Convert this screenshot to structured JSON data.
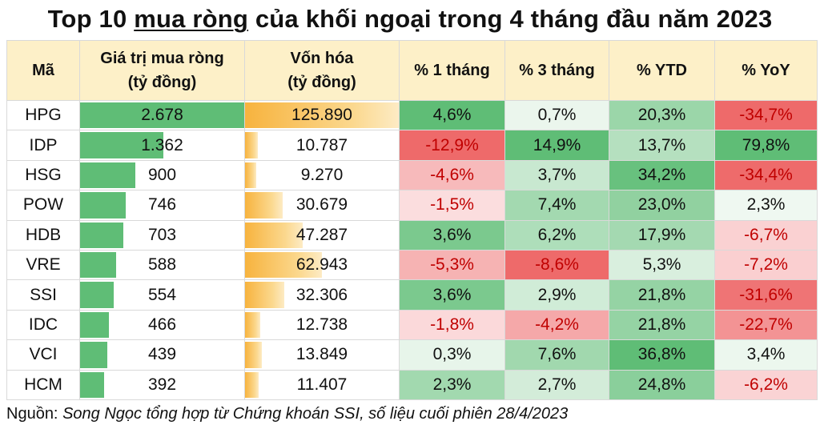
{
  "title": {
    "prefix": "Top 10 ",
    "underlined": "mua ròng",
    "suffix": " của khối ngoại trong 4 tháng đầu năm 2023"
  },
  "headers": {
    "code": "Mã",
    "net_buy_1": "Giá trị mua ròng",
    "net_buy_2": "(tỷ đồng)",
    "cap_1": "Vốn hóa",
    "cap_2": "(tỷ đồng)",
    "m1": "% 1 tháng",
    "m3": "% 3 tháng",
    "ytd": "% YTD",
    "yoy": "% YoY"
  },
  "source": {
    "label": "Nguồn: ",
    "text": "Song Ngọc tổng hợp từ Chứng khoán SSI, số liệu cuối phiên 28/4/2023"
  },
  "colors": {
    "positive_strong": "#5fbd76",
    "positive_light": "#e4f3e7",
    "negative_strong": "#ee6a6a",
    "negative_light": "#fde6e8",
    "bar_green": "#5fbd76",
    "bar_orange": "#f7b33e",
    "header_bg": "#fdf0c8"
  },
  "chart_data": {
    "type": "table",
    "columns": [
      "Mã",
      "Giá trị mua ròng (tỷ đồng)",
      "Vốn hóa (tỷ đồng)",
      "% 1 tháng",
      "% 3 tháng",
      "% YTD",
      "% YoY"
    ],
    "rows": [
      {
        "code": "HPG",
        "net_buy": 2678,
        "net_buy_label": "2.678",
        "market_cap": 125890,
        "market_cap_label": "125.890",
        "m1": 4.6,
        "m1_label": "4,6%",
        "m3": 0.7,
        "m3_label": "0,7%",
        "ytd": 20.3,
        "ytd_label": "20,3%",
        "yoy": -34.7,
        "yoy_label": "-34,7%"
      },
      {
        "code": "IDP",
        "net_buy": 1362,
        "net_buy_label": "1.362",
        "market_cap": 10787,
        "market_cap_label": "10.787",
        "m1": -12.9,
        "m1_label": "-12,9%",
        "m3": 14.9,
        "m3_label": "14,9%",
        "ytd": 13.7,
        "ytd_label": "13,7%",
        "yoy": 79.8,
        "yoy_label": "79,8%"
      },
      {
        "code": "HSG",
        "net_buy": 900,
        "net_buy_label": "900",
        "market_cap": 9270,
        "market_cap_label": "9.270",
        "m1": -4.6,
        "m1_label": "-4,6%",
        "m3": 3.7,
        "m3_label": "3,7%",
        "ytd": 34.2,
        "ytd_label": "34,2%",
        "yoy": -34.4,
        "yoy_label": "-34,4%"
      },
      {
        "code": "POW",
        "net_buy": 746,
        "net_buy_label": "746",
        "market_cap": 30679,
        "market_cap_label": "30.679",
        "m1": -1.5,
        "m1_label": "-1,5%",
        "m3": 7.4,
        "m3_label": "7,4%",
        "ytd": 23.0,
        "ytd_label": "23,0%",
        "yoy": 2.3,
        "yoy_label": "2,3%"
      },
      {
        "code": "HDB",
        "net_buy": 703,
        "net_buy_label": "703",
        "market_cap": 47287,
        "market_cap_label": "47.287",
        "m1": 3.6,
        "m1_label": "3,6%",
        "m3": 6.2,
        "m3_label": "6,2%",
        "ytd": 17.9,
        "ytd_label": "17,9%",
        "yoy": -6.7,
        "yoy_label": "-6,7%"
      },
      {
        "code": "VRE",
        "net_buy": 588,
        "net_buy_label": "588",
        "market_cap": 62943,
        "market_cap_label": "62.943",
        "m1": -5.3,
        "m1_label": "-5,3%",
        "m3": -8.6,
        "m3_label": "-8,6%",
        "ytd": 5.3,
        "ytd_label": "5,3%",
        "yoy": -7.2,
        "yoy_label": "-7,2%"
      },
      {
        "code": "SSI",
        "net_buy": 554,
        "net_buy_label": "554",
        "market_cap": 32306,
        "market_cap_label": "32.306",
        "m1": 3.6,
        "m1_label": "3,6%",
        "m3": 2.9,
        "m3_label": "2,9%",
        "ytd": 21.8,
        "ytd_label": "21,8%",
        "yoy": -31.6,
        "yoy_label": "-31,6%"
      },
      {
        "code": "IDC",
        "net_buy": 466,
        "net_buy_label": "466",
        "market_cap": 12738,
        "market_cap_label": "12.738",
        "m1": -1.8,
        "m1_label": "-1,8%",
        "m3": -4.2,
        "m3_label": "-4,2%",
        "ytd": 21.8,
        "ytd_label": "21,8%",
        "yoy": -22.7,
        "yoy_label": "-22,7%"
      },
      {
        "code": "VCI",
        "net_buy": 439,
        "net_buy_label": "439",
        "market_cap": 13849,
        "market_cap_label": "13.849",
        "m1": 0.3,
        "m1_label": "0,3%",
        "m3": 7.6,
        "m3_label": "7,6%",
        "ytd": 36.8,
        "ytd_label": "36,8%",
        "yoy": 3.4,
        "yoy_label": "3,4%"
      },
      {
        "code": "HCM",
        "net_buy": 392,
        "net_buy_label": "392",
        "market_cap": 11407,
        "market_cap_label": "11.407",
        "m1": 2.3,
        "m1_label": "2,3%",
        "m3": 2.7,
        "m3_label": "2,7%",
        "ytd": 24.8,
        "ytd_label": "24,8%",
        "yoy": -6.2,
        "yoy_label": "-6,2%"
      }
    ]
  }
}
